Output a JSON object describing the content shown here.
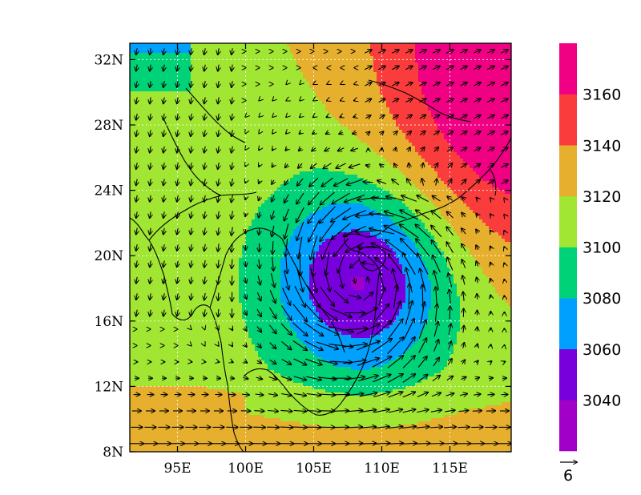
{
  "chart_data": {
    "type": "heatmap",
    "lon_range": [
      91.5,
      119.5
    ],
    "lat_range": [
      8,
      33
    ],
    "x_ticks": [
      "95E",
      "100E",
      "105E",
      "110E",
      "115E"
    ],
    "x_tick_values": [
      95,
      100,
      105,
      110,
      115
    ],
    "y_ticks": [
      "8N",
      "12N",
      "16N",
      "20N",
      "24N",
      "28N",
      "32N"
    ],
    "y_tick_values": [
      8,
      12,
      16,
      20,
      24,
      28,
      32
    ],
    "grid": true,
    "colorbar": {
      "labels": [
        "3040",
        "3060",
        "3080",
        "3100",
        "3120",
        "3140",
        "3160"
      ],
      "levels": [
        3040,
        3060,
        3080,
        3100,
        3120,
        3140,
        3160
      ],
      "colors": [
        "#a000c8",
        "#7800dc",
        "#00a0ff",
        "#00d278",
        "#a0e632",
        "#e6af2d",
        "#fa3c3c",
        "#f00082"
      ]
    },
    "field": {
      "background": 3110,
      "low_center": [
        108.5,
        18.5
      ],
      "low_min": 3036,
      "low_radius_deg": 6.4,
      "high_center": [
        120,
        31
      ],
      "high_max": 3176
    },
    "vectors": {
      "reference_label": "6",
      "reference_value": 6,
      "spacing_deg": 1.0
    }
  }
}
